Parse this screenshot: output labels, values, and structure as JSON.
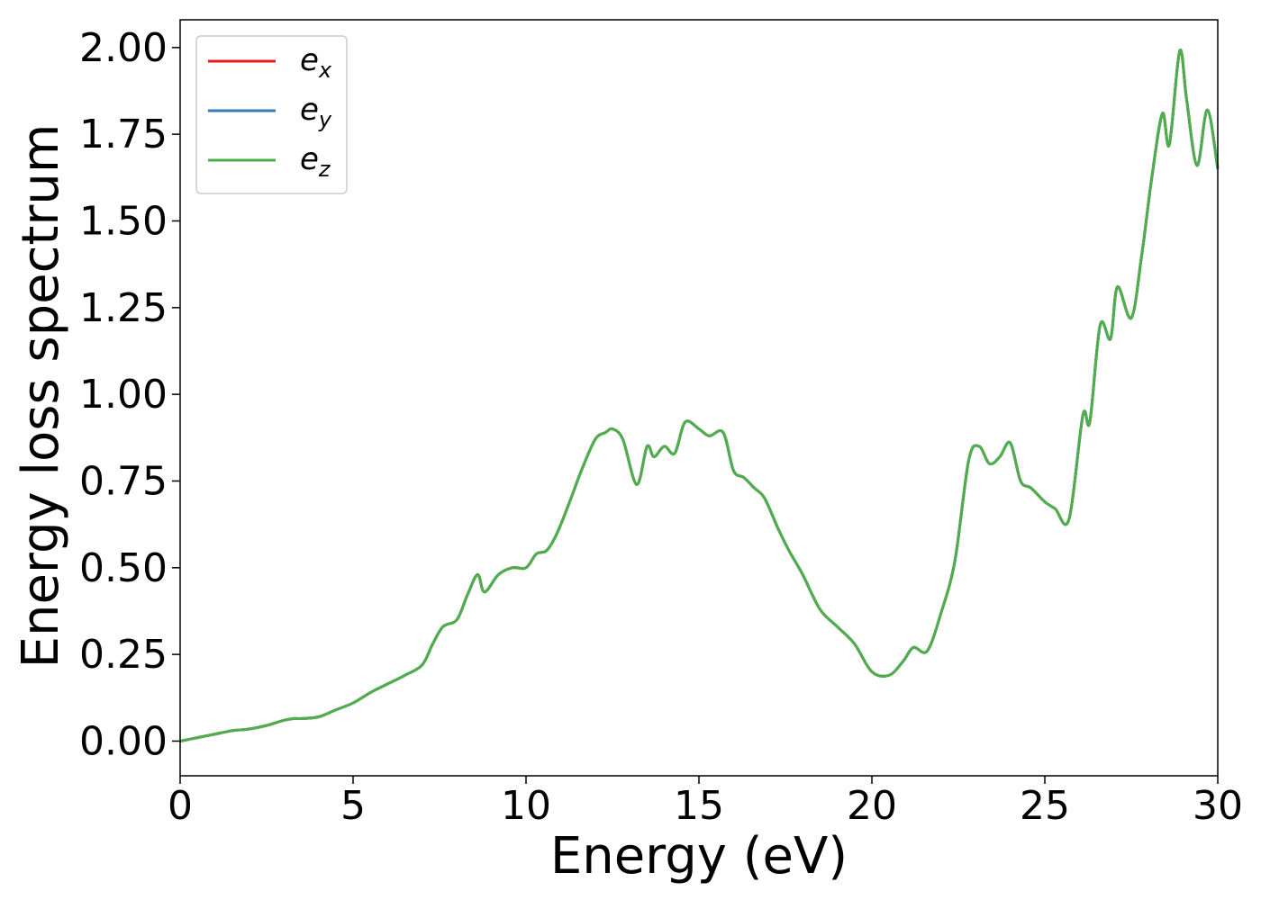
{
  "chart_data": {
    "type": "line",
    "title": "",
    "xlabel": "Energy (eV)",
    "ylabel": "Energy loss spectrum",
    "xlim": [
      0,
      30
    ],
    "ylim": [
      -0.1,
      2.08
    ],
    "xticks": [
      0,
      5,
      10,
      15,
      20,
      25,
      30
    ],
    "xtick_labels": [
      "0",
      "5",
      "10",
      "15",
      "20",
      "25",
      "30"
    ],
    "yticks": [
      0,
      0.25,
      0.5,
      0.75,
      1.0,
      1.25,
      1.5,
      1.75,
      2.0
    ],
    "ytick_labels": [
      "0.00",
      "0.25",
      "0.50",
      "0.75",
      "1.00",
      "1.25",
      "1.50",
      "1.75",
      "2.00"
    ],
    "grid": false,
    "legend_position": "top-left",
    "x": [
      0,
      0.5,
      1,
      1.5,
      2,
      2.5,
      3,
      3.3,
      3.5,
      4,
      4.5,
      5,
      5.5,
      6,
      6.5,
      7,
      7.3,
      7.6,
      8,
      8.3,
      8.6,
      8.8,
      9.2,
      9.6,
      10,
      10.3,
      10.6,
      10.9,
      11.3,
      11.6,
      12,
      12.3,
      12.5,
      12.8,
      13.2,
      13.5,
      13.7,
      14,
      14.3,
      14.6,
      15,
      15.3,
      15.7,
      16,
      16.3,
      16.6,
      16.9,
      17.3,
      17.6,
      18,
      18.5,
      19,
      19.5,
      20,
      20.5,
      20.9,
      21.2,
      21.6,
      22,
      22.4,
      22.8,
      23.1,
      23.4,
      23.7,
      24,
      24.3,
      24.6,
      25,
      25.3,
      25.7,
      26.1,
      26.3,
      26.6,
      26.9,
      27.1,
      27.5,
      27.8,
      28.1,
      28.4,
      28.6,
      28.9,
      29.1,
      29.4,
      29.7,
      30
    ],
    "series": [
      {
        "name": "e_x",
        "color": "#e41a1c",
        "values": [
          0.0,
          0.01,
          0.02,
          0.03,
          0.035,
          0.045,
          0.06,
          0.065,
          0.065,
          0.07,
          0.09,
          0.11,
          0.14,
          0.165,
          0.19,
          0.22,
          0.28,
          0.33,
          0.35,
          0.42,
          0.48,
          0.43,
          0.48,
          0.5,
          0.5,
          0.54,
          0.55,
          0.6,
          0.7,
          0.78,
          0.87,
          0.89,
          0.9,
          0.87,
          0.74,
          0.85,
          0.82,
          0.85,
          0.83,
          0.92,
          0.9,
          0.88,
          0.89,
          0.78,
          0.76,
          0.73,
          0.7,
          0.61,
          0.55,
          0.48,
          0.38,
          0.33,
          0.28,
          0.2,
          0.19,
          0.23,
          0.27,
          0.26,
          0.37,
          0.52,
          0.81,
          0.85,
          0.8,
          0.82,
          0.86,
          0.75,
          0.73,
          0.69,
          0.67,
          0.64,
          0.94,
          0.92,
          1.2,
          1.16,
          1.31,
          1.22,
          1.4,
          1.63,
          1.81,
          1.72,
          1.99,
          1.85,
          1.66,
          1.82,
          1.65
        ]
      },
      {
        "name": "e_y",
        "color": "#377eb8",
        "values": [
          0.0,
          0.01,
          0.02,
          0.03,
          0.035,
          0.045,
          0.06,
          0.065,
          0.065,
          0.07,
          0.09,
          0.11,
          0.14,
          0.165,
          0.19,
          0.22,
          0.28,
          0.33,
          0.35,
          0.42,
          0.48,
          0.43,
          0.48,
          0.5,
          0.5,
          0.54,
          0.55,
          0.6,
          0.7,
          0.78,
          0.87,
          0.89,
          0.9,
          0.87,
          0.74,
          0.85,
          0.82,
          0.85,
          0.83,
          0.92,
          0.9,
          0.88,
          0.89,
          0.78,
          0.76,
          0.73,
          0.7,
          0.61,
          0.55,
          0.48,
          0.38,
          0.33,
          0.28,
          0.2,
          0.19,
          0.23,
          0.27,
          0.26,
          0.37,
          0.52,
          0.81,
          0.85,
          0.8,
          0.82,
          0.86,
          0.75,
          0.73,
          0.69,
          0.67,
          0.64,
          0.94,
          0.92,
          1.2,
          1.16,
          1.31,
          1.22,
          1.4,
          1.63,
          1.81,
          1.72,
          1.99,
          1.85,
          1.66,
          1.82,
          1.65
        ]
      },
      {
        "name": "e_z",
        "color": "#4daf4a",
        "values": [
          0.0,
          0.01,
          0.02,
          0.03,
          0.035,
          0.045,
          0.06,
          0.065,
          0.065,
          0.07,
          0.09,
          0.11,
          0.14,
          0.165,
          0.19,
          0.22,
          0.28,
          0.33,
          0.35,
          0.42,
          0.48,
          0.43,
          0.48,
          0.5,
          0.5,
          0.54,
          0.55,
          0.6,
          0.7,
          0.78,
          0.87,
          0.89,
          0.9,
          0.87,
          0.74,
          0.85,
          0.82,
          0.85,
          0.83,
          0.92,
          0.9,
          0.88,
          0.89,
          0.78,
          0.76,
          0.73,
          0.7,
          0.61,
          0.55,
          0.48,
          0.38,
          0.33,
          0.28,
          0.2,
          0.19,
          0.23,
          0.27,
          0.26,
          0.37,
          0.52,
          0.81,
          0.85,
          0.8,
          0.82,
          0.86,
          0.75,
          0.73,
          0.69,
          0.67,
          0.64,
          0.94,
          0.92,
          1.2,
          1.16,
          1.31,
          1.22,
          1.4,
          1.63,
          1.81,
          1.72,
          1.99,
          1.85,
          1.66,
          1.82,
          1.65
        ]
      }
    ],
    "legend": [
      {
        "base": "e",
        "sub": "x",
        "color": "#e41a1c"
      },
      {
        "base": "e",
        "sub": "y",
        "color": "#377eb8"
      },
      {
        "base": "e",
        "sub": "z",
        "color": "#4daf4a"
      }
    ]
  }
}
